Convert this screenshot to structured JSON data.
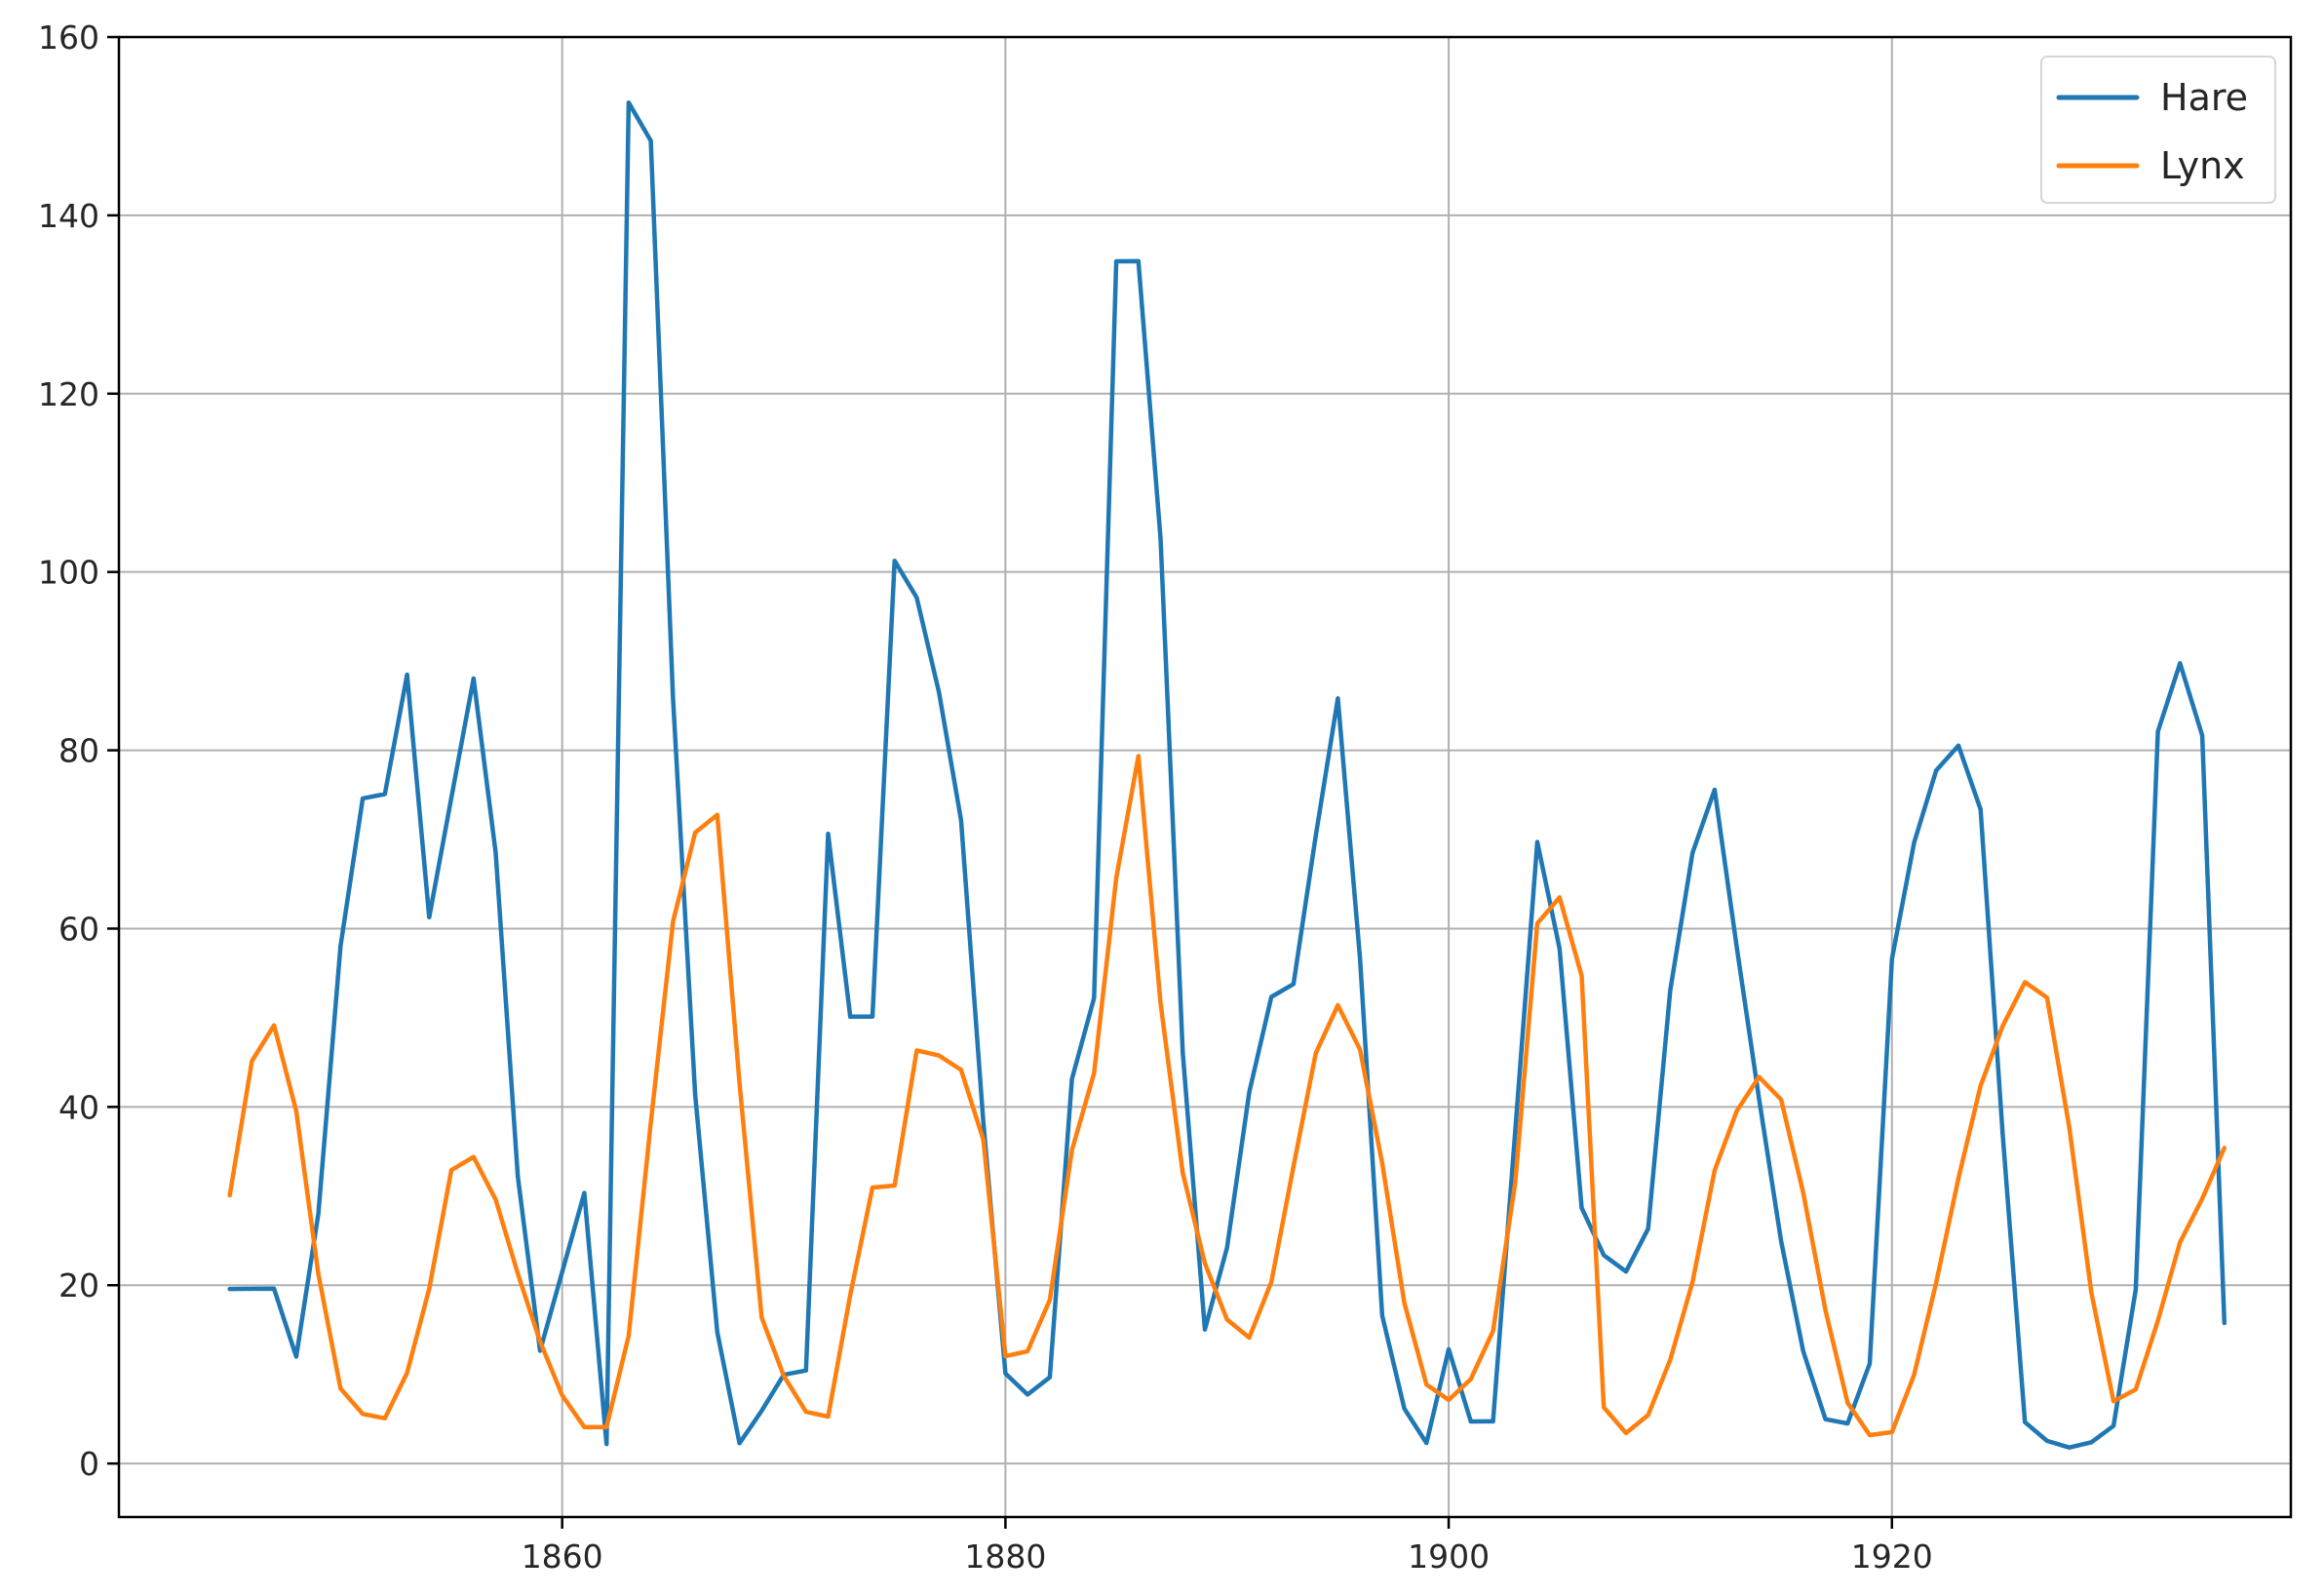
{
  "chart_data": {
    "type": "line",
    "title": "",
    "xlabel": "",
    "ylabel": "",
    "xlim": [
      1840,
      1938
    ],
    "ylim": [
      -6,
      160
    ],
    "x_ticks": [
      1860,
      1880,
      1900,
      1920
    ],
    "y_ticks": [
      0,
      20,
      40,
      60,
      80,
      100,
      120,
      140,
      160
    ],
    "grid": true,
    "legend_position": "top-right",
    "x": [
      1845,
      1846,
      1847,
      1848,
      1849,
      1850,
      1851,
      1852,
      1853,
      1854,
      1855,
      1856,
      1857,
      1858,
      1859,
      1860,
      1861,
      1862,
      1863,
      1864,
      1865,
      1866,
      1867,
      1868,
      1869,
      1870,
      1871,
      1872,
      1873,
      1874,
      1875,
      1876,
      1877,
      1878,
      1879,
      1880,
      1881,
      1882,
      1883,
      1884,
      1885,
      1886,
      1887,
      1888,
      1889,
      1890,
      1891,
      1892,
      1893,
      1894,
      1895,
      1896,
      1897,
      1898,
      1899,
      1900,
      1901,
      1902,
      1903,
      1904,
      1905,
      1906,
      1907,
      1908,
      1909,
      1910,
      1911,
      1912,
      1913,
      1914,
      1915,
      1916,
      1917,
      1918,
      1919,
      1920,
      1921,
      1922,
      1923,
      1924,
      1925,
      1926,
      1927,
      1928,
      1929,
      1930,
      1931,
      1932,
      1933,
      1934,
      1935
    ],
    "series": [
      {
        "name": "Hare",
        "color": "#1f77b4",
        "values": [
          19.58,
          19.6,
          19.61,
          11.99,
          28.04,
          58.0,
          74.6,
          75.09,
          88.48,
          61.28,
          74.67,
          88.06,
          68.51,
          32.19,
          12.64,
          21.49,
          30.35,
          2.18,
          152.65,
          148.36,
          85.81,
          41.41,
          14.75,
          2.28,
          5.91,
          9.95,
          10.44,
          70.64,
          50.12,
          50.13,
          101.25,
          97.12,
          86.51,
          72.17,
          38.32,
          10.11,
          7.74,
          9.67,
          43.12,
          52.21,
          134.85,
          134.86,
          103.79,
          46.1,
          15.03,
          24.2,
          41.65,
          52.34,
          53.78,
          70.4,
          85.81,
          56.69,
          16.59,
          6.16,
          2.3,
          12.82,
          4.72,
          4.73,
          37.22,
          69.72,
          57.78,
          28.68,
          23.37,
          21.54,
          26.34,
          53.1,
          68.48,
          75.58,
          57.92,
          40.97,
          24.95,
          12.59,
          4.97,
          4.5,
          11.21,
          56.6,
          69.63,
          77.74,
          80.53,
          73.38,
          36.93,
          4.64,
          2.54,
          1.8,
          2.39,
          4.23,
          19.52,
          82.11,
          89.76,
          81.66,
          15.76
        ]
      },
      {
        "name": "Lynx",
        "color": "#ff7f0e",
        "values": [
          30.09,
          45.15,
          49.15,
          39.52,
          21.23,
          8.42,
          5.56,
          5.08,
          10.17,
          19.6,
          32.91,
          34.38,
          29.59,
          21.3,
          13.69,
          7.65,
          4.08,
          4.09,
          14.33,
          38.22,
          60.78,
          70.77,
          72.77,
          42.68,
          16.39,
          9.83,
          5.8,
          5.26,
          18.91,
          30.95,
          31.18,
          46.34,
          45.77,
          44.15,
          36.33,
          12.03,
          12.6,
          18.34,
          35.14,
          43.77,
          65.69,
          79.35,
          51.65,
          32.59,
          22.45,
          16.16,
          14.12,
          20.38,
          33.33,
          46.0,
          51.41,
          46.43,
          33.68,
          18.01,
          8.86,
          7.13,
          9.47,
          14.86,
          31.47,
          60.57,
          63.51,
          54.7,
          6.3,
          3.41,
          5.44,
          11.65,
          20.35,
          32.88,
          39.55,
          43.36,
          40.83,
          30.36,
          17.18,
          6.82,
          3.19,
          3.52,
          9.94,
          20.3,
          31.99,
          42.36,
          49.08,
          53.99,
          52.25,
          37.7,
          19.14,
          6.98,
          8.31,
          16.01,
          24.82,
          29.7,
          35.4
        ]
      }
    ]
  }
}
